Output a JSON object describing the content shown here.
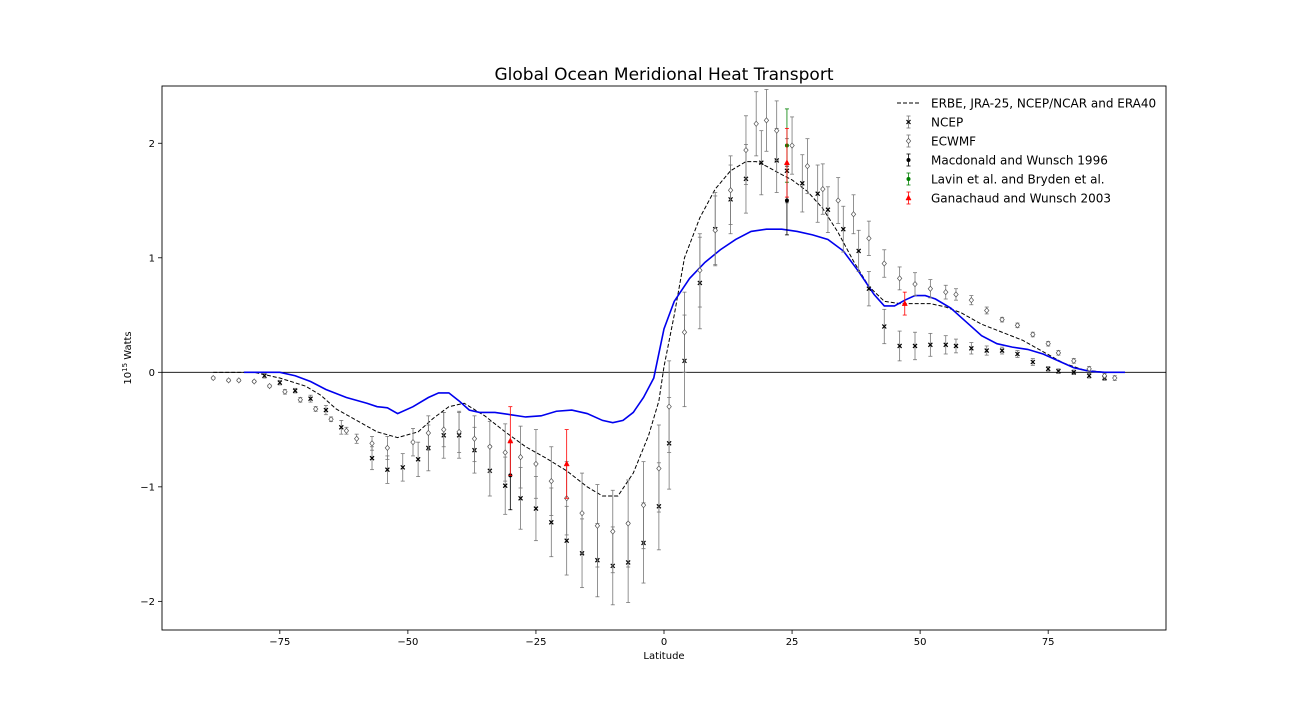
{
  "chart_data": {
    "type": "line",
    "title": "Global Ocean Meridional Heat Transport",
    "xlabel": "Latitude",
    "ylabel_base": "10",
    "ylabel_exp": "15",
    "ylabel_unit": " Watts",
    "xlim": [
      -98,
      98
    ],
    "ylim": [
      -2.25,
      2.5
    ],
    "xticks": [
      -75,
      -50,
      -25,
      0,
      25,
      50,
      75
    ],
    "xtick_labels": [
      "−75",
      "−50",
      "−25",
      "0",
      "25",
      "50",
      "75"
    ],
    "yticks": [
      -2,
      -1,
      0,
      1,
      2
    ],
    "ytick_labels": [
      "−2",
      "−1",
      "0",
      "1",
      "2"
    ],
    "zero_line": true,
    "grid": false,
    "legend_position": "top-right",
    "colors": {
      "erbe": "#000000",
      "model": "#0000ee",
      "ncep": "#000000",
      "ecmwf": "#555555",
      "macdonald": "#000000",
      "lavin": "#008000",
      "ganachaud": "#ff0000",
      "errorbar_gray": "#777777"
    },
    "series": [
      {
        "key": "erbe",
        "name": "ERBE, JRA-25, NCEP/NCAR and ERA40",
        "style": "dashed",
        "x": [
          -88,
          -80,
          -75,
          -70,
          -67,
          -64,
          -60,
          -56,
          -52,
          -48,
          -45,
          -42,
          -39,
          -35,
          -31,
          -27,
          -23,
          -19,
          -15,
          -12,
          -9,
          -6,
          -3,
          -1,
          0,
          2,
          4,
          7,
          10,
          13,
          16,
          18,
          20,
          22,
          25,
          28,
          31,
          34,
          37,
          40,
          43,
          46,
          49,
          52,
          55,
          58,
          62,
          66,
          70,
          74,
          78,
          82,
          86,
          88
        ],
        "y": [
          0,
          0,
          -0.05,
          -0.12,
          -0.2,
          -0.32,
          -0.42,
          -0.52,
          -0.57,
          -0.52,
          -0.4,
          -0.3,
          -0.27,
          -0.38,
          -0.52,
          -0.65,
          -0.75,
          -0.86,
          -1.0,
          -1.08,
          -1.08,
          -0.88,
          -0.55,
          -0.25,
          0.05,
          0.5,
          1.0,
          1.35,
          1.6,
          1.76,
          1.84,
          1.84,
          1.8,
          1.75,
          1.68,
          1.58,
          1.43,
          1.22,
          0.97,
          0.75,
          0.62,
          0.6,
          0.6,
          0.6,
          0.57,
          0.52,
          0.42,
          0.35,
          0.28,
          0.18,
          0.08,
          0.02,
          0,
          0
        ]
      },
      {
        "key": "model",
        "name": "",
        "style": "solid",
        "x": [
          -82,
          -78,
          -75,
          -72,
          -69,
          -66,
          -62,
          -58,
          -56,
          -54,
          -52,
          -49,
          -46,
          -44,
          -42,
          -40,
          -38,
          -36,
          -33,
          -30,
          -27,
          -24,
          -21,
          -18,
          -15,
          -12,
          -10,
          -8,
          -6,
          -4,
          -2,
          0,
          2,
          5,
          8,
          11,
          14,
          17,
          20,
          23,
          26,
          29,
          32,
          35,
          38,
          41,
          43,
          45,
          47,
          49,
          51,
          53,
          56,
          59,
          62,
          65,
          68,
          71,
          74,
          77,
          80,
          83,
          86,
          88,
          90
        ],
        "y": [
          0,
          0,
          0,
          -0.03,
          -0.08,
          -0.15,
          -0.22,
          -0.27,
          -0.3,
          -0.31,
          -0.36,
          -0.3,
          -0.22,
          -0.18,
          -0.18,
          -0.25,
          -0.33,
          -0.35,
          -0.35,
          -0.37,
          -0.39,
          -0.38,
          -0.34,
          -0.33,
          -0.36,
          -0.42,
          -0.44,
          -0.42,
          -0.35,
          -0.22,
          -0.05,
          0.38,
          0.62,
          0.82,
          0.96,
          1.07,
          1.16,
          1.23,
          1.25,
          1.25,
          1.23,
          1.2,
          1.16,
          1.06,
          0.88,
          0.68,
          0.58,
          0.58,
          0.63,
          0.67,
          0.67,
          0.64,
          0.56,
          0.44,
          0.32,
          0.25,
          0.22,
          0.2,
          0.16,
          0.1,
          0.04,
          0.01,
          0,
          0,
          0
        ]
      }
    ],
    "errorbar_series": [
      {
        "key": "ncep",
        "name": "NCEP",
        "marker": "x",
        "x": [
          -78,
          -75,
          -72,
          -69,
          -66,
          -63,
          -57,
          -54,
          -51,
          -48,
          -46,
          -43,
          -40,
          -37,
          -34,
          -31,
          -28,
          -25,
          -22,
          -19,
          -16,
          -13,
          -10,
          -7,
          -4,
          -1,
          1,
          4,
          7,
          10,
          13,
          16,
          19,
          22,
          24,
          27,
          30,
          32,
          35,
          38,
          40,
          43,
          46,
          49,
          52,
          55,
          57,
          60,
          63,
          66,
          69,
          72,
          75,
          77,
          80,
          83,
          86
        ],
        "y": [
          -0.03,
          -0.09,
          -0.16,
          -0.23,
          -0.33,
          -0.48,
          -0.75,
          -0.85,
          -0.83,
          -0.76,
          -0.66,
          -0.55,
          -0.55,
          -0.68,
          -0.86,
          -0.99,
          -1.1,
          -1.19,
          -1.31,
          -1.47,
          -1.58,
          -1.64,
          -1.69,
          -1.66,
          -1.49,
          -1.17,
          -0.62,
          0.1,
          0.78,
          1.25,
          1.51,
          1.69,
          1.83,
          1.85,
          1.76,
          1.65,
          1.56,
          1.42,
          1.25,
          1.06,
          0.73,
          0.4,
          0.23,
          0.23,
          0.24,
          0.24,
          0.23,
          0.21,
          0.19,
          0.19,
          0.16,
          0.09,
          0.03,
          0.01,
          0,
          -0.03,
          -0.05
        ],
        "err": [
          0.02,
          0.02,
          0.02,
          0.03,
          0.04,
          0.06,
          0.1,
          0.12,
          0.12,
          0.15,
          0.2,
          0.2,
          0.2,
          0.2,
          0.22,
          0.25,
          0.27,
          0.28,
          0.3,
          0.3,
          0.3,
          0.32,
          0.34,
          0.35,
          0.35,
          0.38,
          0.4,
          0.4,
          0.4,
          0.32,
          0.3,
          0.3,
          0.28,
          0.28,
          0.28,
          0.25,
          0.25,
          0.2,
          0.2,
          0.18,
          0.15,
          0.15,
          0.13,
          0.12,
          0.1,
          0.08,
          0.06,
          0.05,
          0.04,
          0.03,
          0.03,
          0.03,
          0.02,
          0.02,
          0.02,
          0.02,
          0.02
        ]
      },
      {
        "key": "ecmwf",
        "name": "ECWMF",
        "marker": "diamond",
        "x": [
          -88,
          -85,
          -83,
          -80,
          -77,
          -74,
          -71,
          -68,
          -65,
          -62,
          -60,
          -57,
          -54,
          -49,
          -46,
          -43,
          -40,
          -37,
          -34,
          -31,
          -28,
          -25,
          -22,
          -19,
          -16,
          -13,
          -10,
          -7,
          -4,
          -1,
          1,
          4,
          7,
          10,
          13,
          16,
          18,
          20,
          22,
          25,
          28,
          31,
          34,
          37,
          40,
          43,
          46,
          49,
          52,
          55,
          57,
          60,
          63,
          66,
          69,
          72,
          75,
          77,
          80,
          83,
          86,
          88
        ],
        "y": [
          -0.05,
          -0.07,
          -0.07,
          -0.08,
          -0.12,
          -0.17,
          -0.24,
          -0.32,
          -0.41,
          -0.51,
          -0.58,
          -0.62,
          -0.66,
          -0.61,
          -0.53,
          -0.5,
          -0.52,
          -0.58,
          -0.65,
          -0.7,
          -0.74,
          -0.8,
          -0.95,
          -1.1,
          -1.23,
          -1.34,
          -1.39,
          -1.32,
          -1.16,
          -0.84,
          -0.3,
          0.35,
          0.89,
          1.24,
          1.59,
          1.94,
          2.17,
          2.2,
          2.11,
          1.98,
          1.8,
          1.6,
          1.5,
          1.38,
          1.17,
          0.95,
          0.82,
          0.77,
          0.73,
          0.7,
          0.68,
          0.63,
          0.54,
          0.46,
          0.41,
          0.33,
          0.25,
          0.17,
          0.1,
          0.03,
          -0.03,
          -0.05
        ],
        "err": [
          0.01,
          0.01,
          0.01,
          0.01,
          0.01,
          0.02,
          0.02,
          0.02,
          0.02,
          0.03,
          0.04,
          0.06,
          0.1,
          0.12,
          0.15,
          0.15,
          0.18,
          0.2,
          0.22,
          0.25,
          0.27,
          0.3,
          0.3,
          0.32,
          0.35,
          0.36,
          0.36,
          0.38,
          0.38,
          0.38,
          0.4,
          0.35,
          0.32,
          0.3,
          0.3,
          0.3,
          0.28,
          0.27,
          0.26,
          0.25,
          0.24,
          0.22,
          0.2,
          0.17,
          0.15,
          0.12,
          0.1,
          0.1,
          0.08,
          0.06,
          0.05,
          0.04,
          0.03,
          0.02,
          0.02,
          0.02,
          0.02,
          0.02,
          0.02,
          0.02,
          0.02,
          0.02
        ]
      },
      {
        "key": "macdonald",
        "name": "Macdonald and Wunsch 1996",
        "marker": "dot",
        "x": [
          -30,
          24
        ],
        "y": [
          -0.9,
          1.5
        ],
        "err": [
          0.3,
          0.3
        ]
      },
      {
        "key": "lavin",
        "name": "Lavin et al. and Bryden et al.",
        "marker": "dot",
        "x": [
          24
        ],
        "y": [
          1.98
        ],
        "err": [
          0.32
        ]
      },
      {
        "key": "ganachaud",
        "name": "Ganachaud and Wunsch 2003",
        "marker": "triangle",
        "x": [
          -30,
          -19,
          24,
          47
        ],
        "y": [
          -0.6,
          -0.8,
          1.83,
          0.6
        ],
        "err": [
          0.3,
          0.3,
          0.3,
          0.1
        ]
      }
    ]
  }
}
